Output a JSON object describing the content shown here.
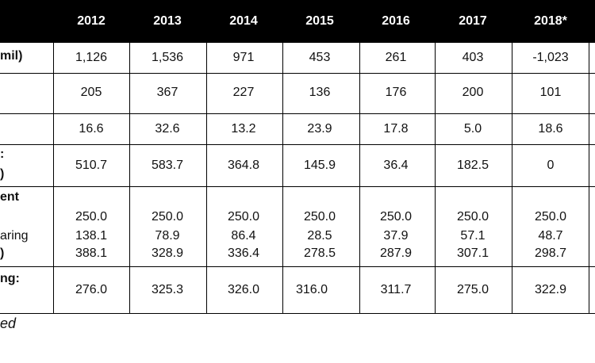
{
  "table": {
    "years": [
      "2012",
      "2013",
      "2014",
      "2015",
      "2016",
      "2017",
      "2018*"
    ],
    "row_labels": {
      "r1": "mil)",
      "r4a": ":",
      "r4b": ")",
      "r5a": "ent",
      "r5b": "aring",
      "r5c": ")",
      "r6a": "ng:"
    },
    "rows": [
      [
        "1,126",
        "1,536",
        "971",
        "453",
        "261",
        "403",
        "-1,023"
      ],
      [
        "205",
        "367",
        "227",
        "136",
        "176",
        "200",
        "101"
      ],
      [
        "16.6",
        "32.6",
        "13.2",
        "23.9",
        "17.8",
        "5.0",
        "18.6"
      ],
      [
        "510.7",
        "583.7",
        "364.8",
        "145.9",
        "36.4",
        "182.5",
        "0"
      ],
      [
        "250.0",
        "250.0",
        "250.0",
        "250.0",
        "250.0",
        "250.0",
        "250.0"
      ],
      [
        "138.1",
        "78.9",
        "86.4",
        "28.5",
        "37.9",
        "57.1",
        "48.7"
      ],
      [
        "388.1",
        "328.9",
        "336.4",
        "278.5",
        "287.9",
        "307.1",
        "298.7"
      ],
      [
        "276.0",
        "325.3",
        "326.0",
        "316.0",
        "311.7",
        "275.0",
        "322.9"
      ]
    ]
  },
  "footnote": "ed"
}
